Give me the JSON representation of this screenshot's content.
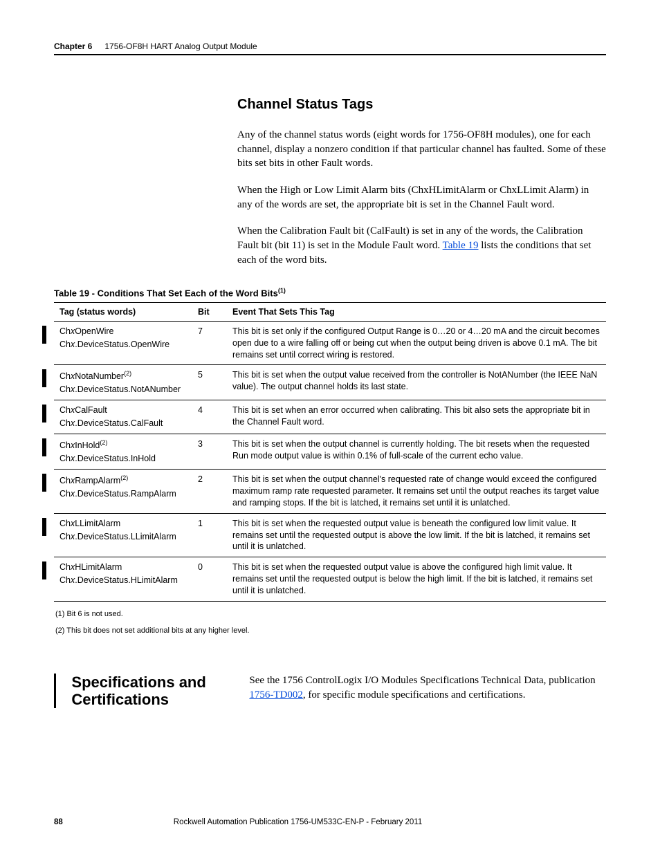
{
  "header": {
    "chapter": "Chapter 6",
    "title": "1756-OF8H HART Analog Output Module"
  },
  "section1": {
    "heading": "Channel Status Tags",
    "p1": "Any of the channel status words (eight words for 1756-OF8H modules), one for each channel, display a nonzero condition if that particular channel has faulted. Some of these bits set bits in other Fault words.",
    "p2": "When the High or Low Limit Alarm bits (ChxHLimitAlarm or ChxLLimit Alarm) in any of the words are set, the appropriate bit is set in the Channel Fault word.",
    "p3a": "When the Calibration Fault bit (CalFault) is set in any of the words, the Calibration Fault bit (bit 11) is set in the Module Fault word. ",
    "p3link": "Table 19",
    "p3b": " lists the conditions that set each of the word bits."
  },
  "table": {
    "caption": "Table 19 - Conditions That Set Each of the Word Bits",
    "captionSup": "(1)",
    "head": {
      "c1": "Tag (status words)",
      "c2": "Bit",
      "c3": "Event That Sets This Tag"
    },
    "rows": [
      {
        "tag1": "ChxOpenWire",
        "sup": "",
        "tag2": "Chx.DeviceStatus.OpenWire",
        "bit": "7",
        "ev": "This bit is set only if the configured Output Range is 0…20 or 4…20 mA and the circuit becomes open due to a wire falling off or being cut when the output being driven is above 0.1 mA. The bit remains set until correct wiring is restored."
      },
      {
        "tag1": "ChxNotaNumber",
        "sup": "(2)",
        "tag2": "Chx.DeviceStatus.NotANumber",
        "bit": "5",
        "ev": "This bit is set when the output value received from the controller is NotANumber (the IEEE NaN value). The output channel holds its last state."
      },
      {
        "tag1": "ChxCalFault",
        "sup": "",
        "tag2": "Chx.DeviceStatus.CalFault",
        "bit": "4",
        "ev": "This bit is set when an error occurred when calibrating. This bit also sets the appropriate bit in the Channel Fault word."
      },
      {
        "tag1": "ChxInHold",
        "sup": "(2)",
        "tag2": "Chx.DeviceStatus.InHold",
        "bit": "3",
        "ev": "This bit is set when the output channel is currently holding. The bit resets when the requested Run mode output value is within 0.1% of full-scale of the current echo value."
      },
      {
        "tag1": "ChxRampAlarm",
        "sup": "(2)",
        "tag2": "Chx.DeviceStatus.RampAlarm",
        "bit": "2",
        "ev": "This bit is set when the output channel's requested rate of change would exceed the configured maximum ramp rate requested parameter. It remains set until the output reaches its target value and ramping stops. If the bit is latched, it remains set until it is unlatched."
      },
      {
        "tag1": "ChxLLimitAlarm",
        "sup": "",
        "tag2": "Chx.DeviceStatus.LLimitAlarm",
        "bit": "1",
        "ev": "This bit is set when the requested output value is beneath the configured low limit value. It remains set until the requested output is above the low limit. If the bit is latched, it remains set until it is unlatched."
      },
      {
        "tag1": "ChxHLimitAlarm",
        "sup": "",
        "tag2": "Chx.DeviceStatus.HLimitAlarm",
        "bit": "0",
        "ev": "This bit is set when the requested output value is above the configured high limit value. It remains set until the requested output is below the high limit. If the bit is latched, it remains set until it is unlatched."
      }
    ],
    "fn1": "(1)   Bit 6 is not used.",
    "fn2": "(2)   This bit does not set additional bits at any higher level."
  },
  "section2": {
    "heading": "Specifications and Certifications",
    "p1a": "See the 1756 ControlLogix I/O Modules Specifications Technical Data, publication ",
    "p1link": "1756-TD002",
    "p1b": ", for specific module specifications and certifications."
  },
  "footer": {
    "page": "88",
    "pub": "Rockwell Automation Publication 1756-UM533C-EN-P - February 2011"
  }
}
